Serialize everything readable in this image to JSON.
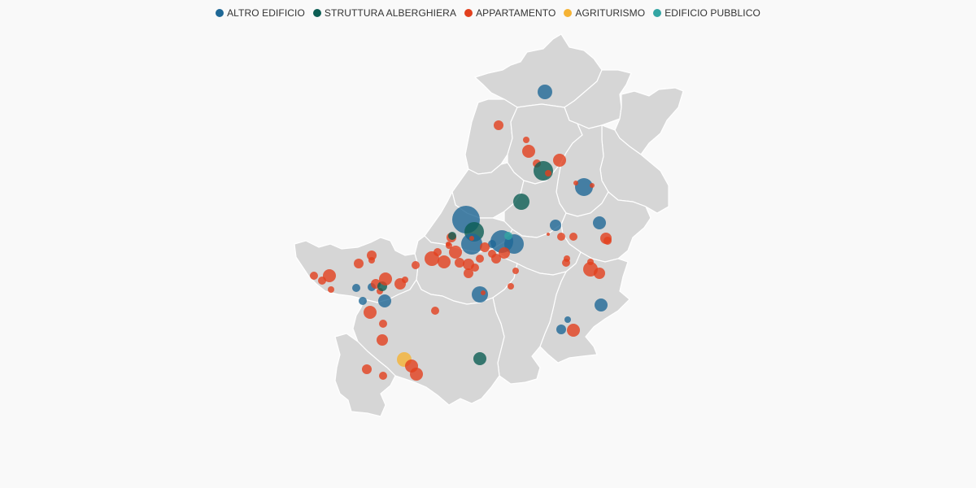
{
  "legend": [
    {
      "name": "ALTRO EDIFICIO",
      "color": "#1f6896"
    },
    {
      "name": "STRUTTURA ALBERGHIERA",
      "color": "#0d5e54"
    },
    {
      "name": "APPARTAMENTO",
      "color": "#e2401e"
    },
    {
      "name": "AGRITURISMO",
      "color": "#f5b335"
    },
    {
      "name": "EDIFICIO PUBBLICO",
      "color": "#33a5a3"
    }
  ]
}
